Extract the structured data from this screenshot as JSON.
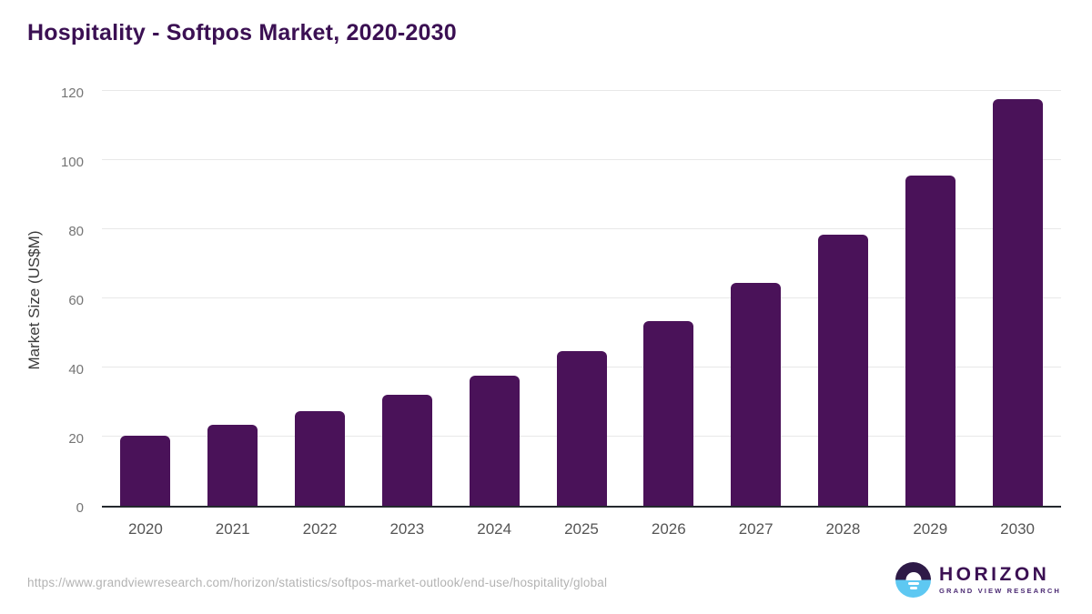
{
  "header": {
    "title": "Hospitality - Softpos Market, 2020-2030"
  },
  "chart_data": {
    "type": "bar",
    "title": "Hospitality - Softpos Market, 2020-2030",
    "categories": [
      "2020",
      "2021",
      "2022",
      "2023",
      "2024",
      "2025",
      "2026",
      "2027",
      "2028",
      "2029",
      "2030"
    ],
    "values": [
      20.3,
      23.5,
      27.3,
      32.0,
      37.7,
      44.8,
      53.5,
      64.6,
      78.3,
      95.6,
      117.7
    ],
    "xlabel": "",
    "ylabel": "Market Size (US$M)",
    "ylim": [
      0,
      120
    ],
    "yticks": [
      0,
      20,
      40,
      60,
      80,
      100,
      120
    ],
    "grid": true,
    "legend": false,
    "bar_color": "#4a1259"
  },
  "footer": {
    "source_url": "https://www.grandviewresearch.com/horizon/statistics/softpos-market-outlook/end-use/hospitality/global",
    "logo": {
      "name": "HORIZON",
      "subtitle": "GRAND VIEW RESEARCH"
    }
  },
  "colors": {
    "title": "#3b1053",
    "bar": "#4a1259",
    "axis": "#24292e",
    "gridline": "#e8e8e8",
    "y_tick": "#757575",
    "x_tick": "#555555",
    "url": "#b3b3b3",
    "logo_top": "#2e1a47",
    "logo_bottom": "#5ec8f2"
  }
}
